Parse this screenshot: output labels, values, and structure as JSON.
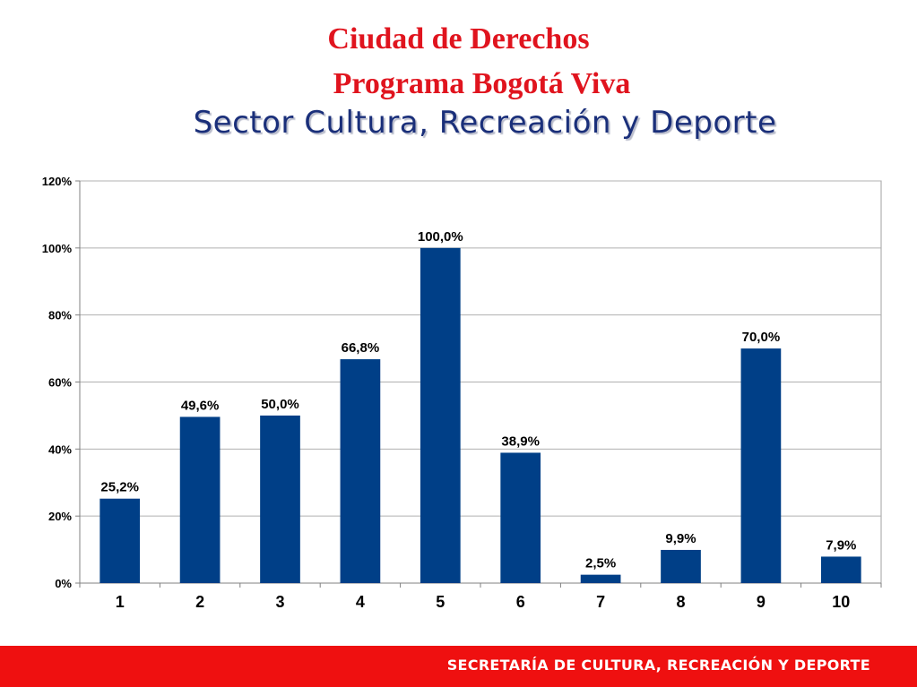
{
  "header": {
    "title_line1": "Ciudad de Derechos",
    "title_line2": "Programa Bogotá Viva",
    "title_line3": "Sector Cultura, Recreación y Deporte"
  },
  "footer": {
    "text": "SECRETARÍA DE CULTURA, RECREACIÓN Y DEPORTE",
    "color": "#ef1010"
  },
  "chart_data": {
    "type": "bar",
    "categories": [
      "1",
      "2",
      "3",
      "4",
      "5",
      "6",
      "7",
      "8",
      "9",
      "10"
    ],
    "values": [
      25.2,
      49.6,
      50.0,
      66.8,
      100.0,
      38.9,
      2.5,
      9.9,
      70.0,
      7.9
    ],
    "data_labels": [
      "25,2%",
      "49,6%",
      "50,0%",
      "66,8%",
      "100,0%",
      "38,9%",
      "2,5%",
      "9,9%",
      "70,0%",
      "7,9%"
    ],
    "y_ticks": [
      0,
      20,
      40,
      60,
      80,
      100,
      120
    ],
    "y_tick_labels": [
      "0%",
      "20%",
      "40%",
      "60%",
      "80%",
      "100%",
      "120%"
    ],
    "ylim": [
      0,
      120
    ],
    "grid": true,
    "bar_color": "#003f87",
    "title": "",
    "xlabel": "",
    "ylabel": ""
  }
}
